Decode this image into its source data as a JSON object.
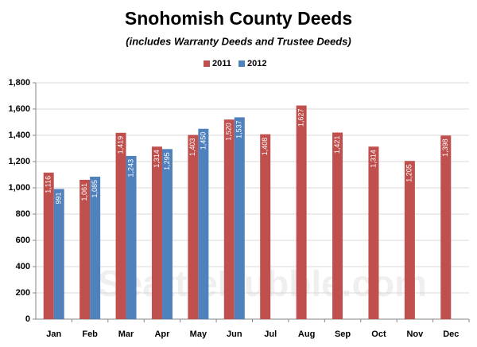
{
  "chart_data": {
    "type": "bar",
    "title": "Snohomish County Deeds",
    "subtitle": "(includes Warranty Deeds and Trustee Deeds)",
    "watermark": "SeattleBubble.com",
    "categories": [
      "Jan",
      "Feb",
      "Mar",
      "Apr",
      "May",
      "Jun",
      "Jul",
      "Aug",
      "Sep",
      "Oct",
      "Nov",
      "Dec"
    ],
    "series": [
      {
        "name": "2011",
        "color": "#c0504d",
        "values": [
          1116,
          1061,
          1419,
          1314,
          1403,
          1520,
          1408,
          1627,
          1421,
          1314,
          1205,
          1398
        ],
        "value_labels": [
          "1,116",
          "1,061",
          "1,419",
          "1,314",
          "1,403",
          "1,520",
          "1,408",
          "1,627",
          "1,421",
          "1,314",
          "1,205",
          "1,398"
        ]
      },
      {
        "name": "2012",
        "color": "#4f81bd",
        "values": [
          991,
          1085,
          1243,
          1295,
          1450,
          1537,
          null,
          null,
          null,
          null,
          null,
          null
        ],
        "value_labels": [
          "991",
          "1,085",
          "1,243",
          "1,295",
          "1,450",
          "1,537",
          null,
          null,
          null,
          null,
          null,
          null
        ]
      }
    ],
    "ylim": [
      0,
      1800
    ],
    "yticks": [
      0,
      200,
      400,
      600,
      800,
      {
        "value": 1000,
        "label": "1,000"
      },
      {
        "value": 1200,
        "label": "1,200"
      },
      {
        "value": 1400,
        "label": "1,400"
      },
      {
        "value": 1600,
        "label": "1,600"
      },
      {
        "value": 1800,
        "label": "1,800"
      }
    ],
    "grid": true,
    "legend": "top"
  }
}
